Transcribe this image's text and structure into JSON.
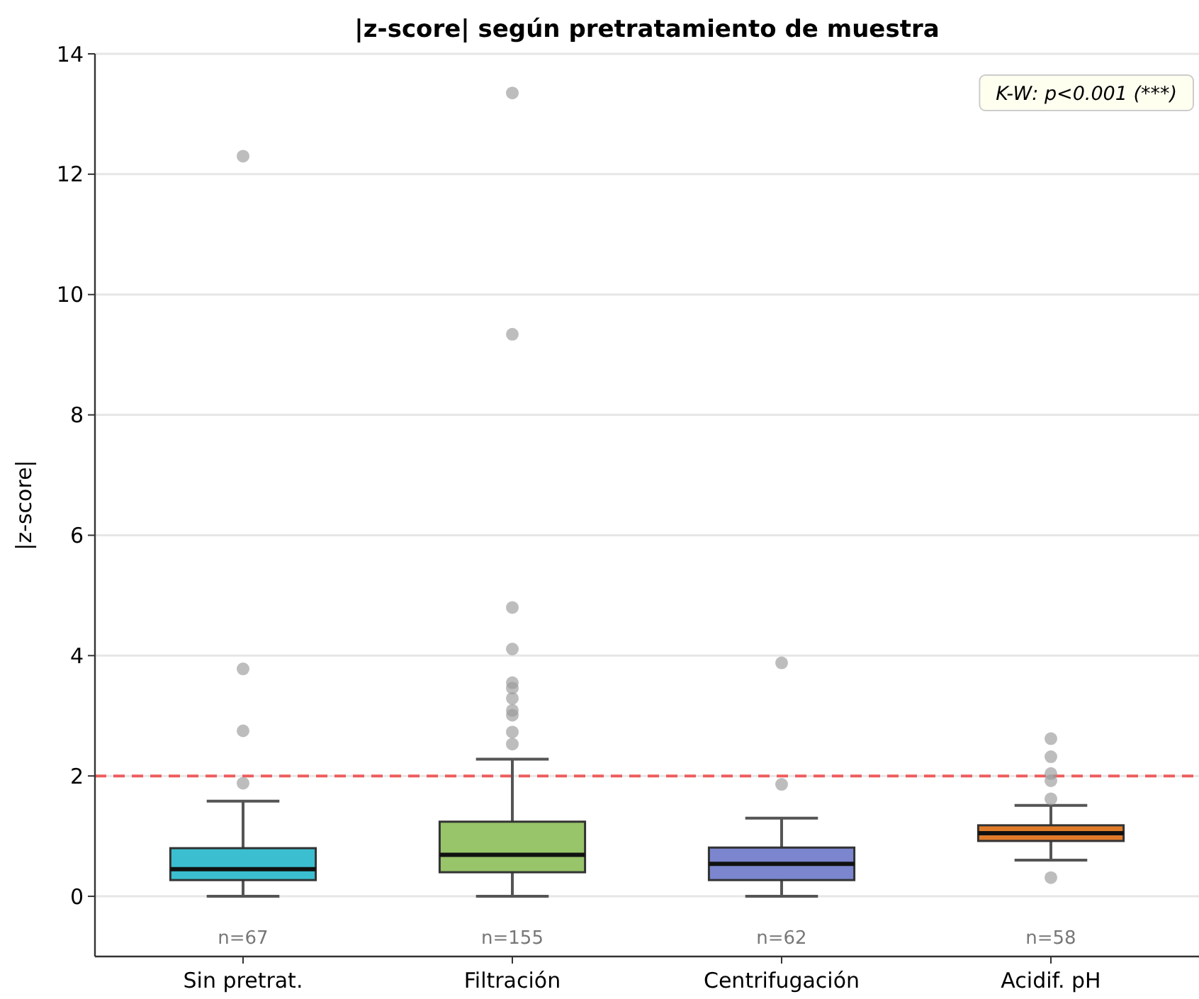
{
  "chart_data": {
    "type": "box",
    "title": "|z-score| según pretratamiento de muestra",
    "ylabel": "|z-score|",
    "categories": [
      "Sin pretrat.",
      "Filtración",
      "Centrifugación",
      "Acidif. pH"
    ],
    "colors": [
      "#3bbfd0",
      "#98c46a",
      "#7b86cf",
      "#e07b2a"
    ],
    "boxes": [
      {
        "low": 0,
        "q1": 0.27,
        "median": 0.45,
        "q3": 0.8,
        "high": 1.58,
        "outliers": [
          1.88,
          2.75,
          3.78,
          12.3
        ]
      },
      {
        "low": 0,
        "q1": 0.4,
        "median": 0.69,
        "q3": 1.24,
        "high": 2.28,
        "outliers": [
          2.53,
          2.73,
          3.01,
          3.09,
          3.29,
          3.46,
          3.55,
          4.11,
          4.8,
          9.34,
          13.35
        ]
      },
      {
        "low": 0,
        "q1": 0.27,
        "median": 0.54,
        "q3": 0.81,
        "high": 1.3,
        "outliers": [
          1.86,
          3.88
        ]
      },
      {
        "low": 0.6,
        "q1": 0.92,
        "median": 1.05,
        "q3": 1.18,
        "high": 1.51,
        "outliers": [
          0.31,
          1.62,
          1.92,
          2.04,
          2.32,
          2.62
        ]
      }
    ],
    "ylim": [
      -1,
      14
    ],
    "yticks": [
      0,
      2,
      4,
      6,
      8,
      10,
      12,
      14
    ],
    "grid": "y",
    "ref_lines": [
      {
        "axis": "y",
        "value": 2,
        "color": "#ee4444",
        "line_style": "dashed"
      }
    ],
    "annotations": [
      "K-W: p<0.001 (***)",
      "n=67",
      "n=155",
      "n=62",
      "n=58"
    ]
  }
}
